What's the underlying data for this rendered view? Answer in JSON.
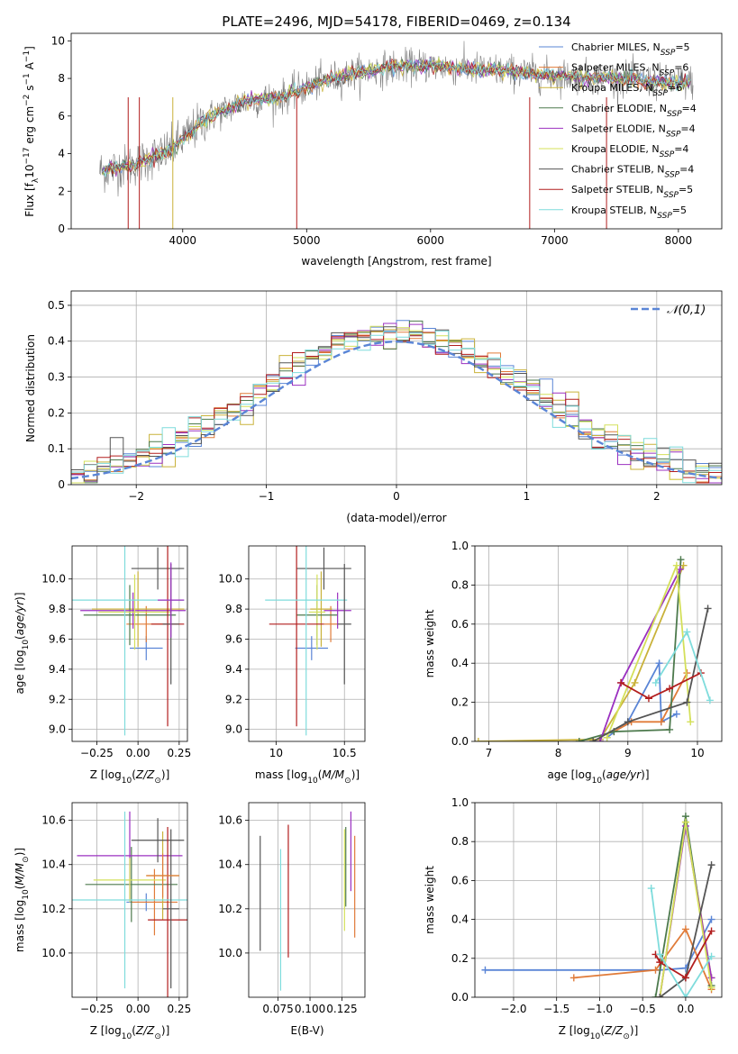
{
  "figure": {
    "title": "PLATE=2496, MJD=54178, FIBERID=0469, z=0.134"
  },
  "models": [
    {
      "name": "Chabrier MILES",
      "nssp": "5",
      "color": "#5a85d6"
    },
    {
      "name": "Salpeter MILES",
      "nssp": "6",
      "color": "#e07b39"
    },
    {
      "name": "Kroupa MILES",
      "nssp": "6",
      "color": "#c9b23a"
    },
    {
      "name": "Chabrier ELODIE",
      "nssp": "4",
      "color": "#4d7a4d"
    },
    {
      "name": "Salpeter ELODIE",
      "nssp": "4",
      "color": "#9b30c0"
    },
    {
      "name": "Kroupa ELODIE",
      "nssp": "4",
      "color": "#d4e05a"
    },
    {
      "name": "Chabrier STELIB",
      "nssp": "4",
      "color": "#555555"
    },
    {
      "name": "Salpeter STELIB",
      "nssp": "5",
      "color": "#b21e1e"
    },
    {
      "name": "Kroupa STELIB",
      "nssp": "5",
      "color": "#7fdcdc"
    }
  ],
  "chart_data": [
    {
      "id": "spectrum",
      "type": "line",
      "xlabel": "wavelength [Angstrom, rest frame]",
      "ylabel": "Flux [f",
      "xlim": [
        3100,
        8350
      ],
      "ylim": [
        0,
        10.4
      ],
      "xticks": [
        4000,
        5000,
        6000,
        7000,
        8000
      ],
      "yticks": [
        0,
        2,
        4,
        6,
        8,
        10
      ],
      "data_color": "#808080",
      "continuum": {
        "x": [
          3350,
          3600,
          3900,
          4200,
          4500,
          4800,
          5100,
          5400,
          5700,
          6000,
          6300,
          6600,
          6900,
          7200,
          7500,
          7800,
          8100
        ],
        "y": [
          3.1,
          3.4,
          4.2,
          5.9,
          6.8,
          7.0,
          7.8,
          8.3,
          8.6,
          8.7,
          8.5,
          8.4,
          8.2,
          8.1,
          8.0,
          7.8,
          7.8
        ]
      },
      "legend": "upper right"
    },
    {
      "id": "residuals",
      "type": "step",
      "xlabel": "(data-model)/error",
      "ylabel": "Normed distribution",
      "xlim": [
        -2.5,
        2.5
      ],
      "ylim": [
        0,
        0.54
      ],
      "xticks": [
        -2,
        -1,
        0,
        1,
        2
      ],
      "yticks": [
        0,
        0.1,
        0.2,
        0.3,
        0.4,
        0.5
      ],
      "gaussian_label": "𝒩(0,1)",
      "gaussian_color": "#5a85d6",
      "grid": true,
      "legend": "upper right"
    },
    {
      "id": "age_vs_Z",
      "type": "errorbar",
      "xlabel": "Z [log",
      "ylabel": "age  [log",
      "xlim": [
        -0.4,
        0.3
      ],
      "ylim": [
        8.92,
        10.22
      ],
      "xticks": [
        -0.25,
        0.0,
        0.25
      ],
      "xticklabels": [
        "−0.25",
        "0.00",
        "0.25"
      ],
      "yticks": [
        9.0,
        9.2,
        9.4,
        9.6,
        9.8,
        10.0
      ],
      "yticklabels": [
        "9.0",
        "9.2",
        "9.4",
        "9.6",
        "9.8",
        "10.0"
      ],
      "points": [
        {
          "x": 0.05,
          "xerr": 0.1,
          "y": 9.54,
          "yerr": 0.08,
          "c": 0
        },
        {
          "x": 0.05,
          "xerr": 0.12,
          "y": 9.7,
          "yerr": 0.12,
          "c": 1
        },
        {
          "x": 0.0,
          "xerr": 0.28,
          "y": 9.8,
          "yerr": 0.25,
          "c": 2
        },
        {
          "x": -0.05,
          "xerr": 0.28,
          "y": 9.76,
          "yerr": 0.2,
          "c": 3
        },
        {
          "x": -0.03,
          "xerr": 0.32,
          "y": 9.79,
          "yerr": 0.12,
          "c": 4
        },
        {
          "x": -0.02,
          "xerr": 0.22,
          "y": 9.78,
          "yerr": 0.25,
          "c": 5
        },
        {
          "x": 0.12,
          "xerr": 0.16,
          "y": 10.07,
          "yerr": 0.14,
          "c": 6
        },
        {
          "x": 0.18,
          "xerr": 0.1,
          "y": 9.7,
          "yerr": 0.68,
          "c": 7
        },
        {
          "x": -0.08,
          "xerr": 0.36,
          "y": 9.86,
          "yerr": 0.9,
          "c": 8
        },
        {
          "x": 0.2,
          "xerr": 0.05,
          "y": 9.7,
          "yerr": 0.4,
          "c": 6
        },
        {
          "x": 0.2,
          "xerr": 0.08,
          "y": 9.86,
          "yerr": 0.25,
          "c": 4
        }
      ]
    },
    {
      "id": "age_vs_mass",
      "type": "errorbar",
      "xlabel": "mass [log",
      "ylabel": "",
      "xlim": [
        9.8,
        10.65
      ],
      "ylim": [
        8.92,
        10.22
      ],
      "xticks": [
        10,
        10.5
      ],
      "xticklabels": [
        "10",
        "10.5"
      ],
      "yticks": [
        9.0,
        9.2,
        9.4,
        9.6,
        9.8,
        10.0
      ],
      "yticklabels": [
        "9.0",
        "9.2",
        "9.4",
        "9.6",
        "9.8",
        "10.0"
      ],
      "points": [
        {
          "x": 10.26,
          "xerr": 0.12,
          "y": 9.54,
          "yerr": 0.08,
          "c": 0
        },
        {
          "x": 10.4,
          "xerr": 0.05,
          "y": 9.7,
          "yerr": 0.12,
          "c": 1
        },
        {
          "x": 10.33,
          "xerr": 0.08,
          "y": 9.8,
          "yerr": 0.25,
          "c": 2
        },
        {
          "x": 10.3,
          "xerr": 0.15,
          "y": 9.76,
          "yerr": 0.2,
          "c": 3
        },
        {
          "x": 10.45,
          "xerr": 0.1,
          "y": 9.79,
          "yerr": 0.12,
          "c": 4
        },
        {
          "x": 10.3,
          "xerr": 0.06,
          "y": 9.78,
          "yerr": 0.25,
          "c": 5
        },
        {
          "x": 10.35,
          "xerr": 0.2,
          "y": 10.07,
          "yerr": 0.14,
          "c": 6
        },
        {
          "x": 10.15,
          "xerr": 0.2,
          "y": 9.7,
          "yerr": 0.68,
          "c": 7
        },
        {
          "x": 10.22,
          "xerr": 0.3,
          "y": 9.86,
          "yerr": 0.9,
          "c": 8
        },
        {
          "x": 10.5,
          "xerr": 0.05,
          "y": 9.7,
          "yerr": 0.4,
          "c": 6
        }
      ]
    },
    {
      "id": "weight_vs_age",
      "type": "line",
      "xlabel": "age  [log",
      "ylabel": "mass weight",
      "xlim": [
        6.8,
        10.35
      ],
      "ylim": [
        0,
        1.0
      ],
      "xticks": [
        7,
        8,
        9,
        10
      ],
      "xticklabels": [
        "7",
        "8",
        "9",
        "10"
      ],
      "yticks": [
        0,
        0.2,
        0.4,
        0.6,
        0.8,
        1.0
      ],
      "yticklabels": [
        "0.0",
        "0.2",
        "0.4",
        "0.6",
        "0.8",
        "1.0"
      ],
      "series": [
        {
          "c": 0,
          "x": [
            8.7,
            9.0,
            9.45,
            9.48,
            9.7
          ],
          "y": [
            0.02,
            0.1,
            0.4,
            0.1,
            0.14
          ]
        },
        {
          "c": 1,
          "x": [
            8.8,
            9.05,
            9.48,
            9.85
          ],
          "y": [
            0.05,
            0.1,
            0.1,
            0.35
          ]
        },
        {
          "c": 2,
          "x": [
            6.85,
            8.6,
            9.1,
            9.8
          ],
          "y": [
            0.0,
            0.01,
            0.3,
            0.9
          ]
        },
        {
          "c": 3,
          "x": [
            8.3,
            8.8,
            9.6,
            9.76
          ],
          "y": [
            0.0,
            0.05,
            0.06,
            0.93
          ]
        },
        {
          "c": 4,
          "x": [
            8.6,
            8.9,
            9.75
          ],
          "y": [
            0.0,
            0.3,
            0.88
          ]
        },
        {
          "c": 5,
          "x": [
            8.7,
            9.7,
            9.9
          ],
          "y": [
            0.02,
            0.9,
            0.1
          ]
        },
        {
          "c": 6,
          "x": [
            8.5,
            9.0,
            9.85,
            10.15
          ],
          "y": [
            0.0,
            0.1,
            0.2,
            0.68
          ]
        },
        {
          "c": 7,
          "x": [
            8.9,
            9.3,
            9.6,
            10.05
          ],
          "y": [
            0.3,
            0.22,
            0.27,
            0.35
          ]
        },
        {
          "c": 8,
          "x": [
            9.4,
            9.85,
            10.18
          ],
          "y": [
            0.3,
            0.56,
            0.21
          ]
        }
      ]
    },
    {
      "id": "mass_vs_Z",
      "type": "errorbar",
      "xlabel": "Z [log",
      "ylabel": "mass [log",
      "xlim": [
        -0.4,
        0.3
      ],
      "ylim": [
        9.8,
        10.68
      ],
      "xticks": [
        -0.25,
        0.0,
        0.25
      ],
      "xticklabels": [
        "−0.25",
        "0.00",
        "0.25"
      ],
      "yticks": [
        10.0,
        10.2,
        10.4,
        10.6
      ],
      "yticklabels": [
        "10.0",
        "10.2",
        "10.4",
        "10.6"
      ],
      "points": [
        {
          "x": 0.05,
          "xerr": 0.12,
          "y": 10.23,
          "yerr": 0.04,
          "c": 0
        },
        {
          "x": 0.1,
          "xerr": 0.14,
          "y": 10.23,
          "yerr": 0.15,
          "c": 1
        },
        {
          "x": 0.15,
          "xerr": 0.1,
          "y": 10.35,
          "yerr": 0.2,
          "c": 2
        },
        {
          "x": -0.04,
          "xerr": 0.28,
          "y": 10.31,
          "yerr": 0.17,
          "c": 3
        },
        {
          "x": -0.05,
          "xerr": 0.32,
          "y": 10.44,
          "yerr": 0.2,
          "c": 4
        },
        {
          "x": -0.05,
          "xerr": 0.22,
          "y": 10.33,
          "yerr": 0.1,
          "c": 5
        },
        {
          "x": 0.12,
          "xerr": 0.16,
          "y": 10.51,
          "yerr": 0.1,
          "c": 6
        },
        {
          "x": 0.18,
          "xerr": 0.12,
          "y": 10.15,
          "yerr": 0.42,
          "c": 7
        },
        {
          "x": -0.08,
          "xerr": 0.38,
          "y": 10.24,
          "yerr": 0.4,
          "c": 8
        },
        {
          "x": 0.2,
          "xerr": 0.05,
          "y": 10.2,
          "yerr": 0.36,
          "c": 6
        },
        {
          "x": 0.15,
          "xerr": 0.1,
          "y": 10.35,
          "yerr": 0.1,
          "c": 1
        }
      ]
    },
    {
      "id": "mass_vs_ebv",
      "type": "errorbar",
      "xlabel": "E(B-V)",
      "ylabel": "",
      "xlim": [
        0.052,
        0.143
      ],
      "ylim": [
        9.8,
        10.68
      ],
      "xticks": [
        0.075,
        0.1,
        0.125
      ],
      "xticklabels": [
        "0.075",
        "0.100",
        "0.125"
      ],
      "yticks": [
        10.0,
        10.2,
        10.4,
        10.6
      ],
      "yticklabels": [
        "10.0",
        "10.2",
        "10.4",
        "10.6"
      ],
      "points": [
        {
          "x": 0.061,
          "y": 10.27,
          "yerr": 0.26,
          "c": 6
        },
        {
          "x": 0.077,
          "y": 10.15,
          "yerr": 0.32,
          "c": 8
        },
        {
          "x": 0.083,
          "y": 10.28,
          "yerr": 0.3,
          "c": 7
        },
        {
          "x": 0.127,
          "y": 10.33,
          "yerr": 0.23,
          "c": 5
        },
        {
          "x": 0.128,
          "y": 10.39,
          "yerr": 0.18,
          "c": 3
        },
        {
          "x": 0.132,
          "y": 10.46,
          "yerr": 0.18,
          "c": 4
        },
        {
          "x": 0.135,
          "y": 10.3,
          "yerr": 0.23,
          "c": 1
        }
      ]
    },
    {
      "id": "weight_vs_Z",
      "type": "line",
      "xlabel": "Z [log",
      "ylabel": "mass weight",
      "xlim": [
        -2.45,
        0.42
      ],
      "ylim": [
        0,
        1.0
      ],
      "xticks": [
        -2.0,
        -1.5,
        -1.0,
        -0.5,
        0.0
      ],
      "xticklabels": [
        "−2.0",
        "−1.5",
        "−1.0",
        "−0.5",
        "0.0"
      ],
      "yticks": [
        0,
        0.2,
        0.4,
        0.6,
        0.8,
        1.0
      ],
      "yticklabels": [
        "0.0",
        "0.2",
        "0.4",
        "0.6",
        "0.8",
        "1.0"
      ],
      "series": [
        {
          "c": 0,
          "x": [
            -2.33,
            -0.3,
            0.0,
            0.3
          ],
          "y": [
            0.14,
            0.14,
            0.15,
            0.4
          ]
        },
        {
          "c": 1,
          "x": [
            -1.3,
            -0.35,
            0.0,
            0.3
          ],
          "y": [
            0.1,
            0.14,
            0.35,
            0.04
          ]
        },
        {
          "c": 2,
          "x": [
            -0.3,
            0.0,
            0.3
          ],
          "y": [
            0.0,
            0.9,
            0.1
          ]
        },
        {
          "c": 3,
          "x": [
            -0.35,
            0.0,
            0.3
          ],
          "y": [
            0.0,
            0.93,
            0.06
          ]
        },
        {
          "c": 4,
          "x": [
            -0.3,
            0.0,
            0.3
          ],
          "y": [
            0.0,
            0.88,
            0.1
          ]
        },
        {
          "c": 5,
          "x": [
            -0.3,
            0.0,
            0.3
          ],
          "y": [
            0.0,
            0.9,
            0.05
          ]
        },
        {
          "c": 6,
          "x": [
            -0.3,
            0.0,
            0.3
          ],
          "y": [
            0.0,
            0.1,
            0.68
          ]
        },
        {
          "c": 7,
          "x": [
            -0.35,
            -0.3,
            0.0,
            0.3
          ],
          "y": [
            0.22,
            0.18,
            0.1,
            0.34
          ]
        },
        {
          "c": 8,
          "x": [
            -0.4,
            -0.3,
            0.0,
            0.3
          ],
          "y": [
            0.56,
            0.22,
            0.0,
            0.21
          ]
        }
      ]
    }
  ]
}
